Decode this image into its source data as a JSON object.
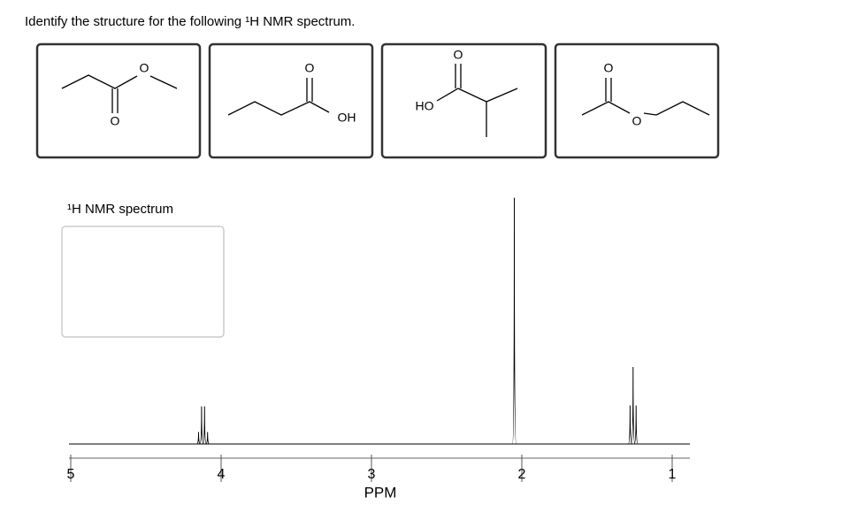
{
  "question": "Identify the structure for the following ¹H NMR spectrum.",
  "options": [
    {
      "atoms": [
        "O",
        "O"
      ]
    },
    {
      "atoms": [
        "O",
        "OH"
      ]
    },
    {
      "atoms": [
        "O",
        "HO"
      ]
    },
    {
      "atoms": [
        "O",
        "O"
      ]
    }
  ],
  "spectrum_label": "¹H NMR spectrum",
  "spectrum": {
    "xlim": [
      5.0,
      0.9
    ],
    "xticks": [
      5,
      4,
      3,
      2,
      1
    ],
    "x_label": "PPM",
    "ylim": [
      0,
      300
    ],
    "ppm": [
      4.15,
      4.13,
      4.11,
      4.09,
      2.05,
      1.28,
      1.26,
      1.24
    ],
    "intensity": [
      14,
      44,
      44,
      14,
      288,
      45,
      90,
      45
    ]
  }
}
